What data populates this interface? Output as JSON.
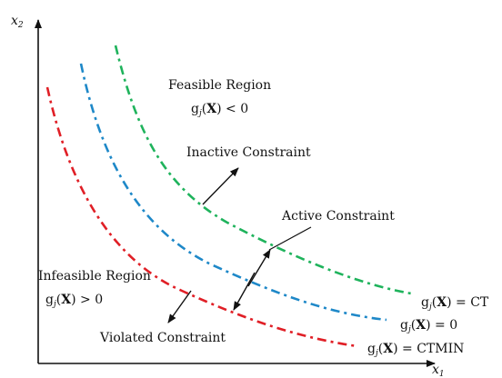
{
  "axes": {
    "y_label": "x",
    "y_sub": "2",
    "x_label": "x",
    "x_sub": "1"
  },
  "feasible": {
    "title": "Feasible Region",
    "expr": {
      "g": "g",
      "j": "j",
      "open": "(",
      "X": "X",
      "close": ")",
      "rel": " < 0"
    }
  },
  "infeasible": {
    "title": "Infeasible Region",
    "expr": {
      "g": "g",
      "j": "j",
      "open": "(",
      "X": "X",
      "close": ")",
      "rel": " > 0"
    }
  },
  "annotations": {
    "inactive": "Inactive Constraint",
    "active": "Active Constraint",
    "violated": "Violated Constraint"
  },
  "curves": [
    {
      "name": "inactive",
      "color": "#1fb35c",
      "label": {
        "g": "g",
        "j": "j",
        "open": "(",
        "X": "X",
        "close": ")",
        "rel": " =  CT"
      }
    },
    {
      "name": "active",
      "color": "#1e88c8",
      "label": {
        "g": "g",
        "j": "j",
        "open": "(",
        "X": "X",
        "close": ")",
        "rel": " =  0"
      }
    },
    {
      "name": "violated",
      "color": "#e01f26",
      "label": {
        "g": "g",
        "j": "j",
        "open": "(",
        "X": "X",
        "close": ")",
        "rel": " =  CTMIN"
      }
    }
  ]
}
